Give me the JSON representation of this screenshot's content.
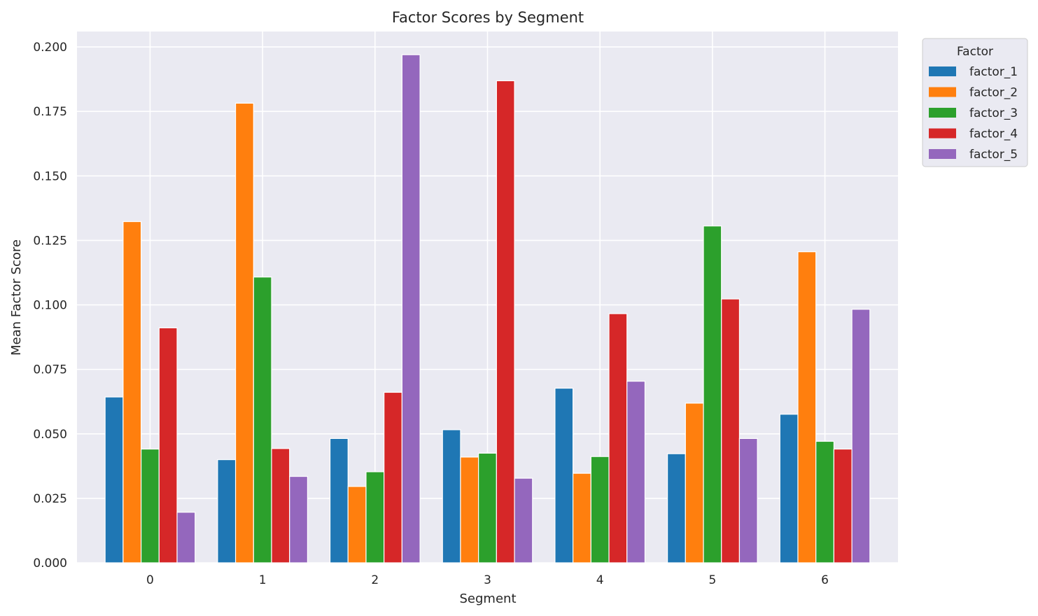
{
  "chart_data": {
    "type": "bar",
    "title": "Factor Scores by Segment",
    "xlabel": "Segment",
    "ylabel": "Mean Factor Score",
    "categories": [
      "0",
      "1",
      "2",
      "3",
      "4",
      "5",
      "6"
    ],
    "ylim": [
      0,
      0.206
    ],
    "yticks": [
      "0.000",
      "0.025",
      "0.050",
      "0.075",
      "0.100",
      "0.125",
      "0.150",
      "0.175",
      "0.200"
    ],
    "grid": true,
    "legend_title": "Factor",
    "legend_position": "outside-top-right",
    "series": [
      {
        "name": "factor_1",
        "color": "#1f77b4",
        "values": [
          0.0643,
          0.04,
          0.0482,
          0.0516,
          0.0677,
          0.0423,
          0.0576
        ]
      },
      {
        "name": "factor_2",
        "color": "#ff7f0e",
        "values": [
          0.1323,
          0.1782,
          0.0296,
          0.041,
          0.0347,
          0.0619,
          0.1206
        ]
      },
      {
        "name": "factor_3",
        "color": "#2ca02c",
        "values": [
          0.0441,
          0.1108,
          0.0353,
          0.0425,
          0.0412,
          0.1306,
          0.0471
        ]
      },
      {
        "name": "factor_4",
        "color": "#d62728",
        "values": [
          0.0911,
          0.0443,
          0.0661,
          0.1869,
          0.0966,
          0.1023,
          0.0441
        ]
      },
      {
        "name": "factor_5",
        "color": "#9467bd",
        "values": [
          0.0196,
          0.0335,
          0.197,
          0.0328,
          0.0704,
          0.0482,
          0.0983
        ]
      }
    ]
  }
}
